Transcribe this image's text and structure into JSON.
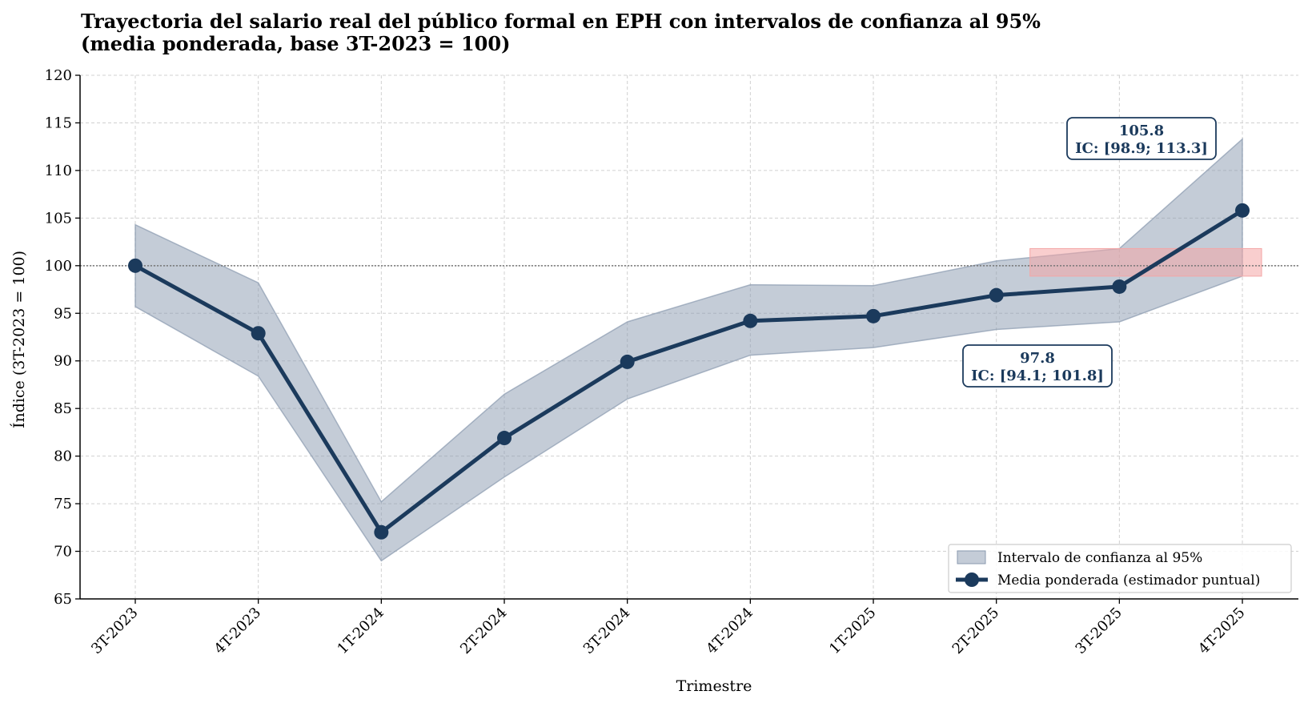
{
  "chart_data": {
    "type": "line",
    "title_lines": [
      "Trayectoria del salario real del público formal en EPH con intervalos de confianza al 95%",
      "(media ponderada, base 3T-2023 = 100)"
    ],
    "xlabel": "Trimestre",
    "ylabel": "Índice (3T-2023 = 100)",
    "categories": [
      "3T-2023",
      "4T-2023",
      "1T-2024",
      "2T-2024",
      "3T-2024",
      "4T-2024",
      "1T-2025",
      "2T-2025",
      "3T-2025",
      "4T-2025"
    ],
    "series": [
      {
        "name": "Media ponderada (estimador puntual)",
        "values": [
          100.0,
          92.9,
          72.0,
          81.9,
          89.9,
          94.2,
          94.7,
          96.9,
          97.8,
          105.8
        ],
        "color": "#1b3a5c"
      }
    ],
    "ci": {
      "name": "Intervalo de confianza al 95%",
      "lower": [
        95.7,
        88.4,
        69.0,
        77.8,
        86.0,
        90.6,
        91.4,
        93.3,
        94.1,
        98.9
      ],
      "upper": [
        104.3,
        98.2,
        75.2,
        86.5,
        94.1,
        98.0,
        97.9,
        100.5,
        101.8,
        113.3
      ],
      "color": "#8a9aaf"
    },
    "ylim": [
      65,
      120
    ],
    "yticks": [
      65,
      70,
      75,
      80,
      85,
      90,
      95,
      100,
      105,
      110,
      115,
      120
    ],
    "tick_labels_y": [
      "65",
      "70",
      "75",
      "80",
      "85",
      "90",
      "95",
      "100",
      "105",
      "110",
      "115",
      "120"
    ],
    "reference_line": 100,
    "highlight_band": {
      "x_from": "2T-2025",
      "x_to": "4T-2025",
      "y_from": 98.9,
      "y_to": 101.8,
      "color": "#f4a6a6"
    },
    "annotations": [
      {
        "category": "3T-2025",
        "value": "97.8",
        "ci_text": "IC: [94.1; 101.8]"
      },
      {
        "category": "4T-2025",
        "value": "105.8",
        "ci_text": "IC: [98.9; 113.3]"
      }
    ],
    "grid": true,
    "legend_position": "bottom-right"
  }
}
